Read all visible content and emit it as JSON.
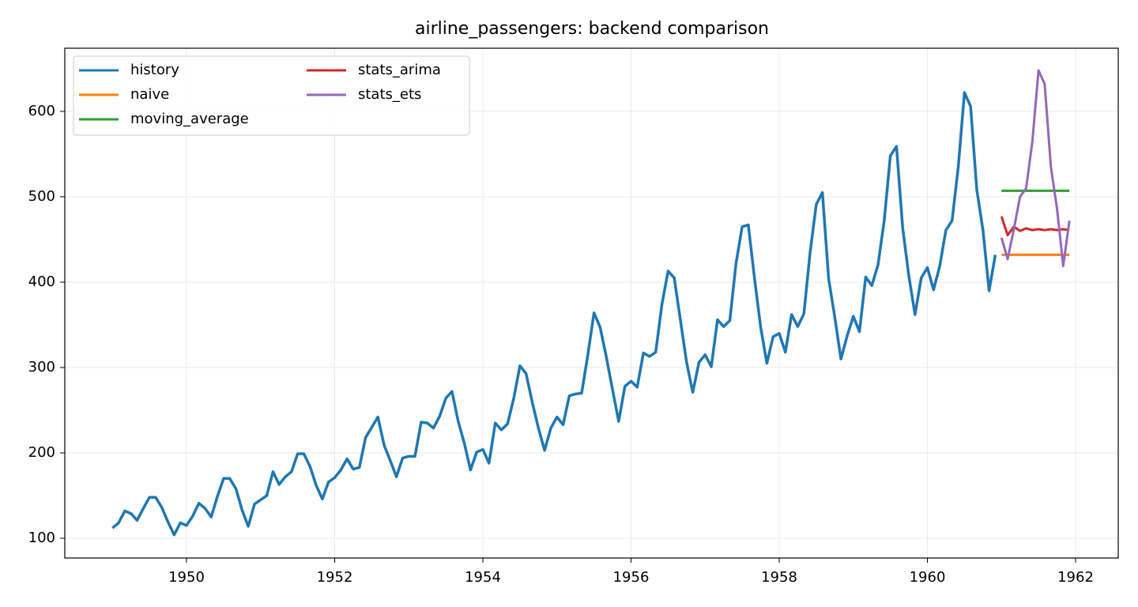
{
  "chart_data": {
    "type": "line",
    "title": "airline_passengers: backend comparison",
    "xlim": [
      1948.357,
      1962.576
    ],
    "ylim": [
      76.9,
      674
    ],
    "xticks": [
      1950,
      1952,
      1954,
      1956,
      1958,
      1960,
      1962
    ],
    "yticks": [
      100,
      200,
      300,
      400,
      500,
      600
    ],
    "grid": true,
    "legend": "upper left",
    "series": [
      {
        "name": "history",
        "color": "#1f77b4",
        "x": [
          1949,
          1949.083,
          1949.167,
          1949.25,
          1949.333,
          1949.417,
          1949.5,
          1949.583,
          1949.667,
          1949.75,
          1949.833,
          1949.917,
          1950,
          1950.083,
          1950.167,
          1950.25,
          1950.333,
          1950.417,
          1950.5,
          1950.583,
          1950.667,
          1950.75,
          1950.833,
          1950.917,
          1951,
          1951.083,
          1951.167,
          1951.25,
          1951.333,
          1951.417,
          1951.5,
          1951.583,
          1951.667,
          1951.75,
          1951.833,
          1951.917,
          1952,
          1952.083,
          1952.167,
          1952.25,
          1952.333,
          1952.417,
          1952.5,
          1952.583,
          1952.667,
          1952.75,
          1952.833,
          1952.917,
          1953,
          1953.083,
          1953.167,
          1953.25,
          1953.333,
          1953.417,
          1953.5,
          1953.583,
          1953.667,
          1953.75,
          1953.833,
          1953.917,
          1954,
          1954.083,
          1954.167,
          1954.25,
          1954.333,
          1954.417,
          1954.5,
          1954.583,
          1954.667,
          1954.75,
          1954.833,
          1954.917,
          1955,
          1955.083,
          1955.167,
          1955.25,
          1955.333,
          1955.417,
          1955.5,
          1955.583,
          1955.667,
          1955.75,
          1955.833,
          1955.917,
          1956,
          1956.083,
          1956.167,
          1956.25,
          1956.333,
          1956.417,
          1956.5,
          1956.583,
          1956.667,
          1956.75,
          1956.833,
          1956.917,
          1957,
          1957.083,
          1957.167,
          1957.25,
          1957.333,
          1957.417,
          1957.5,
          1957.583,
          1957.667,
          1957.75,
          1957.833,
          1957.917,
          1958,
          1958.083,
          1958.167,
          1958.25,
          1958.333,
          1958.417,
          1958.5,
          1958.583,
          1958.667,
          1958.75,
          1958.833,
          1958.917,
          1959,
          1959.083,
          1959.167,
          1959.25,
          1959.333,
          1959.417,
          1959.5,
          1959.583,
          1959.667,
          1959.75,
          1959.833,
          1959.917,
          1960,
          1960.083,
          1960.167,
          1960.25,
          1960.333,
          1960.417,
          1960.5,
          1960.583,
          1960.667,
          1960.75,
          1960.833,
          1960.917
        ],
        "values": [
          112,
          118,
          132,
          129,
          121,
          135,
          148,
          148,
          136,
          119,
          104,
          118,
          115,
          126,
          141,
          135,
          125,
          149,
          170,
          170,
          158,
          133,
          114,
          140,
          145,
          150,
          178,
          163,
          172,
          178,
          199,
          199,
          184,
          162,
          146,
          166,
          171,
          180,
          193,
          181,
          183,
          218,
          230,
          242,
          209,
          191,
          172,
          194,
          196,
          196,
          236,
          235,
          229,
          243,
          264,
          272,
          237,
          211,
          180,
          201,
          204,
          188,
          235,
          227,
          234,
          264,
          302,
          293,
          259,
          229,
          203,
          229,
          242,
          233,
          267,
          269,
          270,
          315,
          364,
          347,
          312,
          274,
          237,
          278,
          284,
          277,
          317,
          313,
          318,
          374,
          413,
          405,
          355,
          306,
          271,
          306,
          315,
          301,
          356,
          348,
          355,
          422,
          465,
          467,
          404,
          347,
          305,
          336,
          340,
          318,
          362,
          348,
          363,
          435,
          491,
          505,
          404,
          359,
          310,
          337,
          360,
          342,
          406,
          396,
          420,
          472,
          548,
          559,
          463,
          407,
          362,
          405,
          417,
          391,
          419,
          461,
          472,
          535,
          622,
          606,
          508,
          461,
          390,
          432
        ]
      },
      {
        "name": "naive",
        "color": "#ff7f0e",
        "x": [
          1961,
          1961.083,
          1961.167,
          1961.25,
          1961.333,
          1961.417,
          1961.5,
          1961.583,
          1961.667,
          1961.75,
          1961.833,
          1961.917
        ],
        "values": [
          432,
          432,
          432,
          432,
          432,
          432,
          432,
          432,
          432,
          432,
          432,
          432
        ]
      },
      {
        "name": "moving_average",
        "color": "#2ca02c",
        "x": [
          1961,
          1961.083,
          1961.167,
          1961.25,
          1961.333,
          1961.417,
          1961.5,
          1961.583,
          1961.667,
          1961.75,
          1961.833,
          1961.917
        ],
        "values": [
          507,
          507,
          507,
          507,
          507,
          507,
          507,
          507,
          507,
          507,
          507,
          507
        ]
      },
      {
        "name": "stats_arima",
        "color": "#d62728",
        "x": [
          1961,
          1961.083,
          1961.167,
          1961.25,
          1961.333,
          1961.417,
          1961.5,
          1961.583,
          1961.667,
          1961.75,
          1961.833,
          1961.917
        ],
        "values": [
          477,
          455,
          465,
          460,
          463,
          461,
          462,
          461,
          462,
          461,
          462,
          461
        ]
      },
      {
        "name": "stats_ets",
        "color": "#9467bd",
        "x": [
          1961,
          1961.083,
          1961.167,
          1961.25,
          1961.333,
          1961.417,
          1961.5,
          1961.583,
          1961.667,
          1961.75,
          1961.833,
          1961.917
        ],
        "values": [
          452,
          427,
          462,
          500,
          510,
          565,
          648,
          632,
          535,
          486,
          419,
          472
        ]
      }
    ]
  }
}
